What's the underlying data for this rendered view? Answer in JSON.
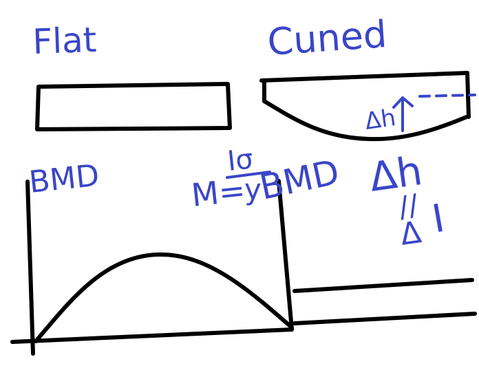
{
  "labels": {
    "flat": "Flat",
    "curved": "Cuned",
    "bmd_left": "BMD",
    "bmd_right": "BMD",
    "moment_lhs": "M=",
    "moment_num": "Iσ",
    "moment_den": "y",
    "delta_h_small": "Δh",
    "delta_h_big": "Δh",
    "proportional": "//",
    "inertia_symbol": "I",
    "delta_bottom": "Δ"
  },
  "colors": {
    "ink_black": "#000000",
    "ink_blue": "#3a46c8",
    "background": "#ffffff"
  }
}
